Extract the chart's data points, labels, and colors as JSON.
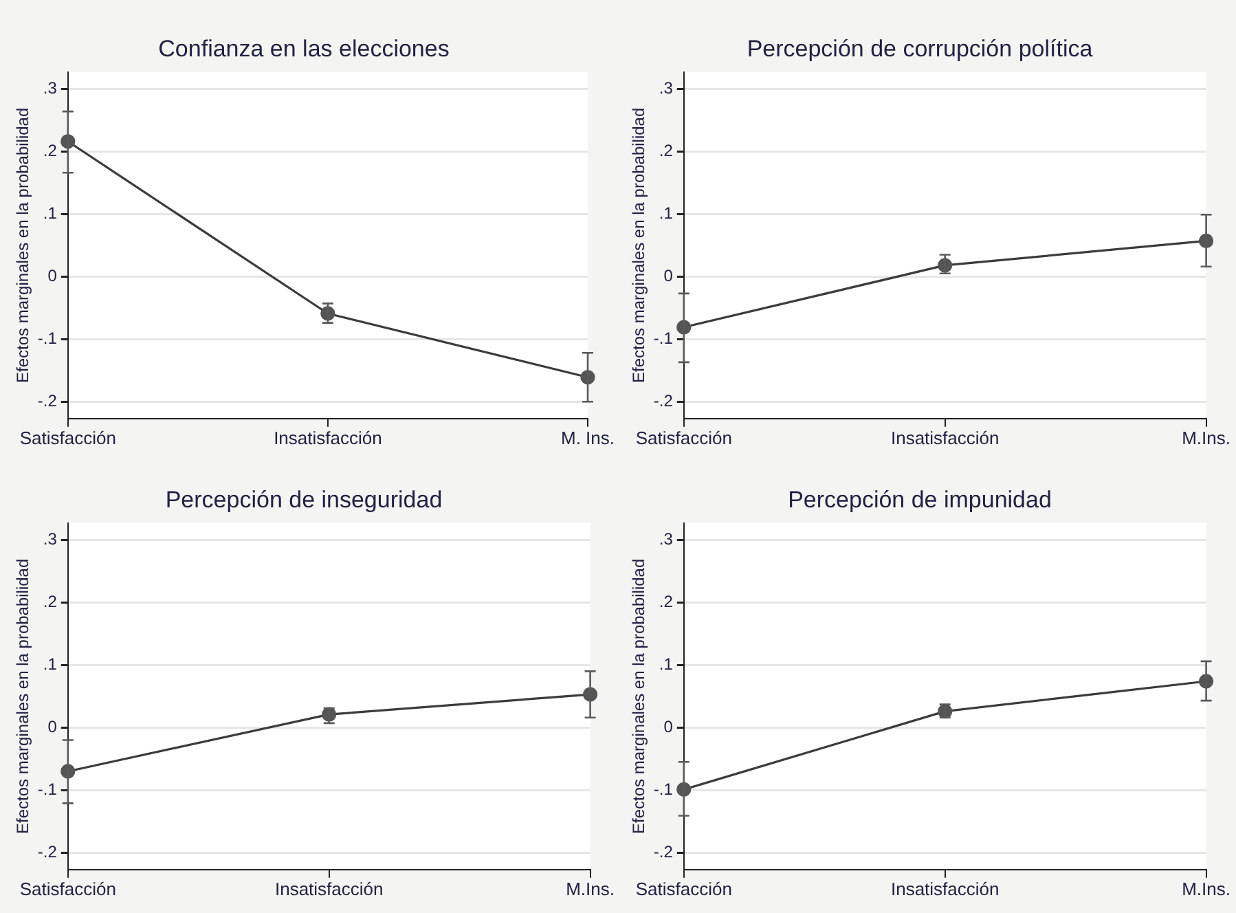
{
  "chart_data": [
    {
      "type": "line",
      "title": "Confianza en las elecciones",
      "ylabel": "Efectos marginales en la probabilidad",
      "categories": [
        "Satisfacción",
        "Insatisfacción",
        "M. Ins."
      ],
      "series": [
        {
          "color": "#3c3c3c",
          "values": [
            0.216,
            -0.059,
            -0.161
          ],
          "errors": [
            [
              0.166,
              0.264
            ],
            [
              -0.074,
              -0.043
            ],
            [
              -0.2,
              -0.122
            ]
          ]
        }
      ],
      "ylim": [
        -0.227,
        0.327
      ],
      "yticks": [
        {
          "value": -0.2,
          "label": "-.2"
        },
        {
          "value": -0.1,
          "label": "-.1"
        },
        {
          "value": 0,
          "label": "0"
        },
        {
          "value": 0.1,
          "label": ".1"
        },
        {
          "value": 0.2,
          "label": ".2"
        },
        {
          "value": 0.3,
          "label": ".3"
        }
      ],
      "grid": "y",
      "legend": false,
      "marker": "circle"
    },
    {
      "type": "line",
      "title": "Percepción de corrupción política",
      "ylabel": "Efectos marginales en la probabilidad",
      "categories": [
        "Satisfacción",
        "Insatisfacción",
        "M.Ins."
      ],
      "series": [
        {
          "color": "#3c3c3c",
          "values": [
            -0.081,
            0.018,
            0.057
          ],
          "errors": [
            [
              -0.137,
              -0.027
            ],
            [
              0.005,
              0.035
            ],
            [
              0.016,
              0.099
            ]
          ]
        }
      ],
      "ylim": [
        -0.227,
        0.327
      ],
      "yticks": [
        {
          "value": -0.2,
          "label": "-.2"
        },
        {
          "value": -0.1,
          "label": "-.1"
        },
        {
          "value": 0,
          "label": "0"
        },
        {
          "value": 0.1,
          "label": ".1"
        },
        {
          "value": 0.2,
          "label": ".2"
        },
        {
          "value": 0.3,
          "label": ".3"
        }
      ],
      "grid": "y",
      "legend": false,
      "marker": "circle"
    },
    {
      "type": "line",
      "title": "Percepción de inseguridad",
      "ylabel": "Efectos marginales en la probabilidad",
      "categories": [
        "Satisfacción",
        "Insatisfacción",
        "M.Ins."
      ],
      "series": [
        {
          "color": "#3c3c3c",
          "values": [
            -0.07,
            0.021,
            0.053
          ],
          "errors": [
            [
              -0.121,
              -0.02
            ],
            [
              0.007,
              0.031
            ],
            [
              0.016,
              0.09
            ]
          ]
        }
      ],
      "ylim": [
        -0.227,
        0.327
      ],
      "yticks": [
        {
          "value": -0.2,
          "label": "-.2"
        },
        {
          "value": -0.1,
          "label": "-.1"
        },
        {
          "value": 0,
          "label": "0"
        },
        {
          "value": 0.1,
          "label": ".1"
        },
        {
          "value": 0.2,
          "label": ".2"
        },
        {
          "value": 0.3,
          "label": ".3"
        }
      ],
      "grid": "y",
      "legend": false,
      "marker": "circle"
    },
    {
      "type": "line",
      "title": "Percepción de impunidad",
      "ylabel": "Efectos marginales en la probabilidad",
      "categories": [
        "Satisfacción",
        "Insatisfacción",
        "M.Ins."
      ],
      "series": [
        {
          "color": "#3c3c3c",
          "values": [
            -0.099,
            0.026,
            0.074
          ],
          "errors": [
            [
              -0.141,
              -0.055
            ],
            [
              0.016,
              0.037
            ],
            [
              0.043,
              0.106
            ]
          ]
        }
      ],
      "ylim": [
        -0.227,
        0.327
      ],
      "yticks": [
        {
          "value": -0.2,
          "label": "-.2"
        },
        {
          "value": -0.1,
          "label": "-.1"
        },
        {
          "value": 0,
          "label": "0"
        },
        {
          "value": 0.1,
          "label": ".1"
        },
        {
          "value": 0.2,
          "label": ".2"
        },
        {
          "value": 0.3,
          "label": ".3"
        }
      ],
      "grid": "y",
      "legend": false,
      "marker": "circle"
    }
  ]
}
